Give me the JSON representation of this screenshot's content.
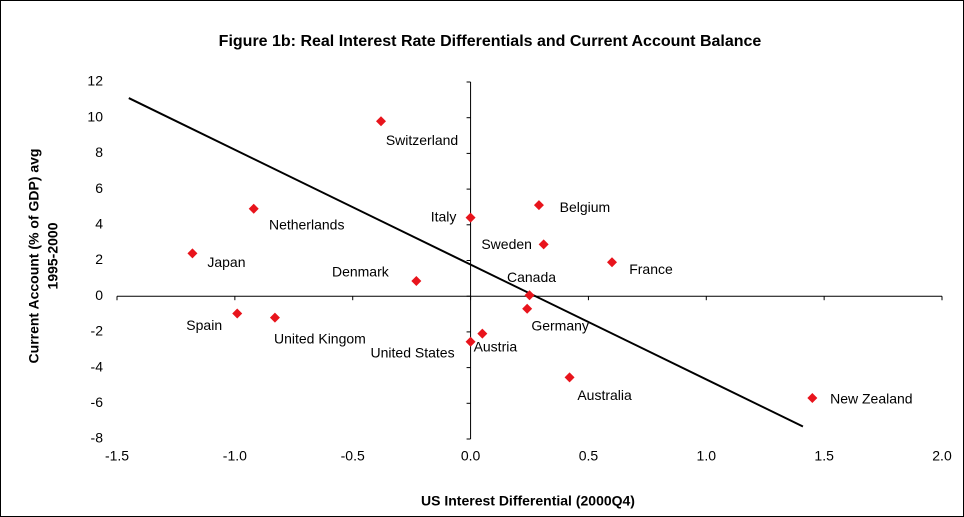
{
  "chart_data": {
    "type": "scatter",
    "title": "Figure 1b:  Real Interest Rate Differentials and Current Account Balance",
    "x_label": "US Interest Differential (2000Q4)",
    "y_label": [
      "Current Account (% of GDP) avg",
      "1995-2000"
    ],
    "labels": [
      "Switzerland",
      "Netherlands",
      "Japan",
      "Spain",
      "United Kingom",
      "Denmark",
      "Italy",
      "United States",
      "Austria",
      "Belgium",
      "Sweden",
      "Canada",
      "Germany",
      "France",
      "Australia",
      "New Zealand"
    ],
    "x": [
      -0.38,
      -0.92,
      -1.18,
      -0.99,
      -0.83,
      -0.23,
      0.0,
      0.0,
      0.05,
      0.29,
      0.31,
      0.25,
      0.24,
      0.6,
      0.42,
      1.45
    ],
    "values": [
      9.8,
      4.9,
      2.4,
      -0.97,
      -1.2,
      0.85,
      4.4,
      -2.55,
      -2.1,
      5.1,
      2.9,
      0.05,
      -0.7,
      1.9,
      -4.55,
      -5.7
    ],
    "color": "#e8141c",
    "trend_line": {
      "x": [
        -1.45,
        1.41
      ],
      "y": [
        11.1,
        -7.3
      ],
      "color": "#000000"
    },
    "xlim": [
      -1.5,
      2.0
    ],
    "xticks": [
      {
        "value": -1.5,
        "label": "-1.5"
      },
      {
        "value": -1.0,
        "label": "-1.0"
      },
      {
        "value": -0.5,
        "label": "-0.5"
      },
      {
        "value": 0.0,
        "label": "0.0"
      },
      {
        "value": 0.5,
        "label": "0.5"
      },
      {
        "value": 1.0,
        "label": "1.0"
      },
      {
        "value": 1.5,
        "label": "1.5"
      },
      {
        "value": 2.0,
        "label": "2.0"
      }
    ],
    "ylim": [
      -8,
      12
    ],
    "yticks": [
      -8,
      -6,
      -4,
      -2,
      0,
      2,
      4,
      6,
      8,
      10,
      12
    ]
  }
}
